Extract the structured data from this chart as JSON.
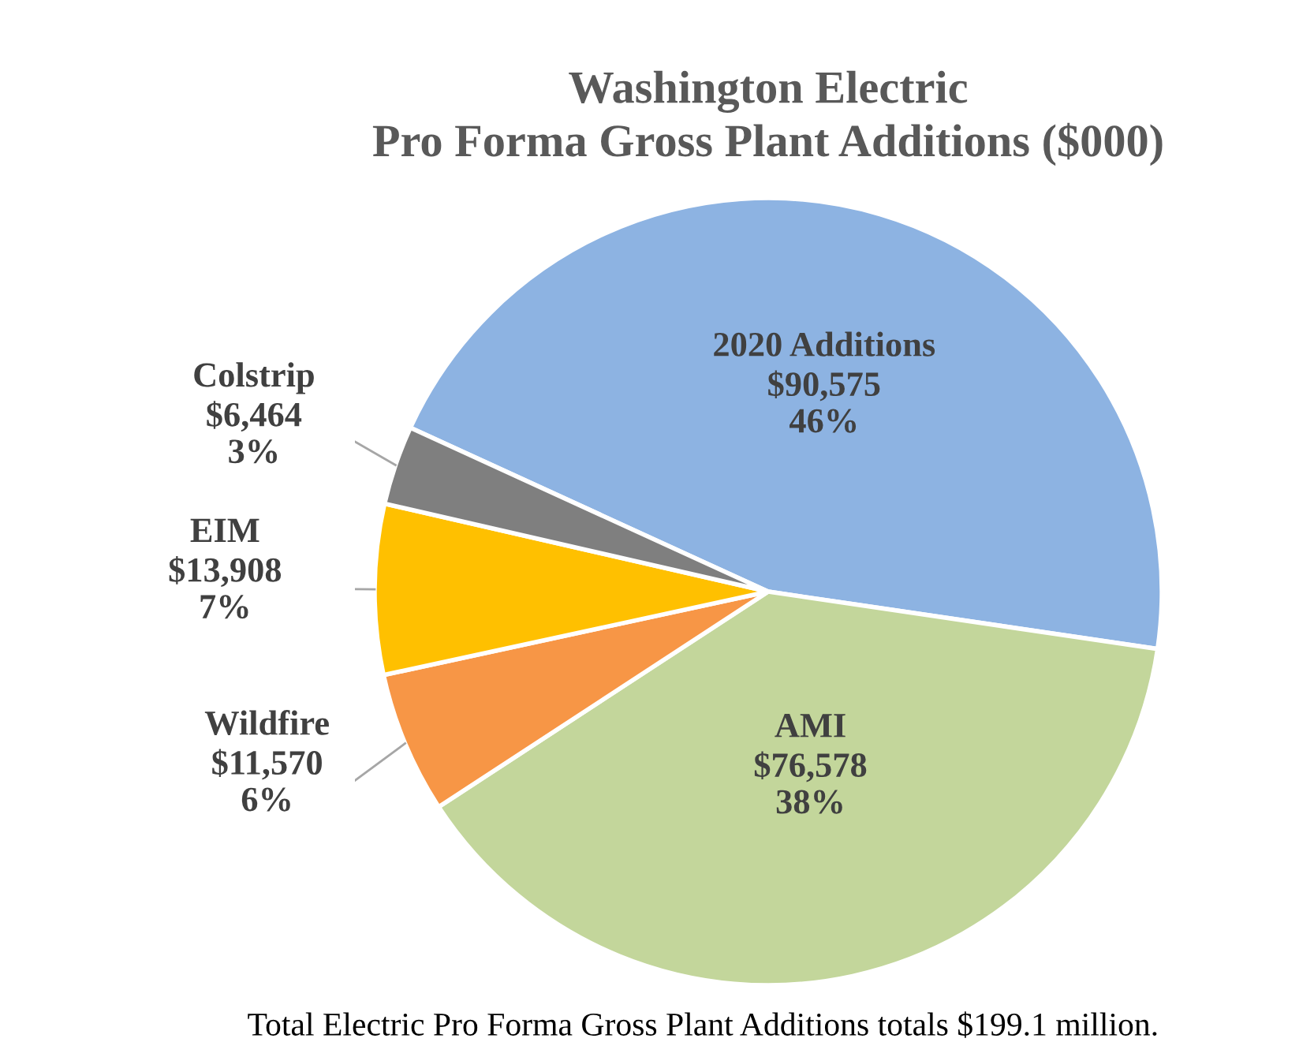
{
  "chart_data": {
    "type": "pie",
    "title": "Washington Electric\nPro Forma Gross Plant Additions ($000)",
    "categories": [
      "2020 Additions",
      "AMI",
      "Wildfire",
      "EIM",
      "Colstrip"
    ],
    "values": [
      90575,
      76578,
      11570,
      13908,
      6464
    ],
    "value_labels": [
      "$90,575\n46%",
      "$76,578\n38%",
      "$11,570\n6%",
      "$13,908\n7%",
      "$6,464\n3%"
    ],
    "colors": [
      "#8db3e2",
      "#c3d69b",
      "#f79646",
      "#ffc000",
      "#7f7f7f"
    ],
    "annotations": [
      "Total Electric Pro Forma Gross Plant Additions totals $199.1 million."
    ],
    "legend": false
  }
}
